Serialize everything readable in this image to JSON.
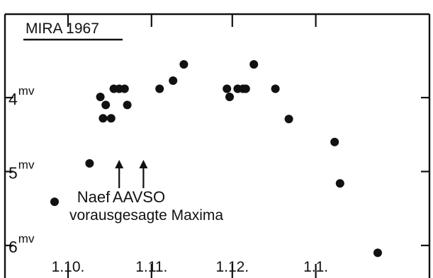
{
  "chart_data": {
    "type": "scatter",
    "title": "MIRA 1967",
    "x_ticks": [
      "1.10.",
      "1.11.",
      "1.12.",
      "1.1."
    ],
    "y_ticks": [
      {
        "base": "4",
        "sup": "mv",
        "value": 4
      },
      {
        "base": "5",
        "sup": "mv",
        "value": 5
      },
      {
        "base": "6",
        "sup": "mv",
        "value": 6
      }
    ],
    "y_axis": {
      "inverted": true,
      "range": [
        3.25,
        6.1
      ]
    },
    "series": [
      {
        "points": [
          {
            "date": "1967-09-26",
            "mag": 5.41
          },
          {
            "date": "1967-10-09",
            "mag": 4.89
          },
          {
            "date": "1967-10-13",
            "mag": 3.99
          },
          {
            "date": "1967-10-14",
            "mag": 4.28
          },
          {
            "date": "1967-10-15",
            "mag": 4.1
          },
          {
            "date": "1967-10-17",
            "mag": 4.28
          },
          {
            "date": "1967-10-18",
            "mag": 3.88
          },
          {
            "date": "1967-10-20",
            "mag": 3.88
          },
          {
            "date": "1967-10-22",
            "mag": 3.88
          },
          {
            "date": "1967-10-23",
            "mag": 4.1
          },
          {
            "date": "1967-11-04",
            "mag": 3.88
          },
          {
            "date": "1967-11-09",
            "mag": 3.77
          },
          {
            "date": "1967-11-13",
            "mag": 3.55
          },
          {
            "date": "1967-11-29",
            "mag": 3.88
          },
          {
            "date": "1967-11-30",
            "mag": 3.99
          },
          {
            "date": "1967-12-03",
            "mag": 3.88
          },
          {
            "date": "1967-12-05",
            "mag": 3.88
          },
          {
            "date": "1967-12-06",
            "mag": 3.88
          },
          {
            "date": "1967-12-09",
            "mag": 3.55
          },
          {
            "date": "1967-12-17",
            "mag": 3.88
          },
          {
            "date": "1967-12-22",
            "mag": 4.29
          },
          {
            "date": "1968-01-08",
            "mag": 4.6
          },
          {
            "date": "1968-01-10",
            "mag": 5.16
          },
          {
            "date": "1968-01-24",
            "mag": 6.1
          }
        ]
      }
    ],
    "annotations": [
      {
        "text": "Naef",
        "date": "1967-10-20"
      },
      {
        "text": "AAVSO",
        "date": "1967-10-29"
      }
    ],
    "caption": "vorausgesagte Maxima"
  }
}
